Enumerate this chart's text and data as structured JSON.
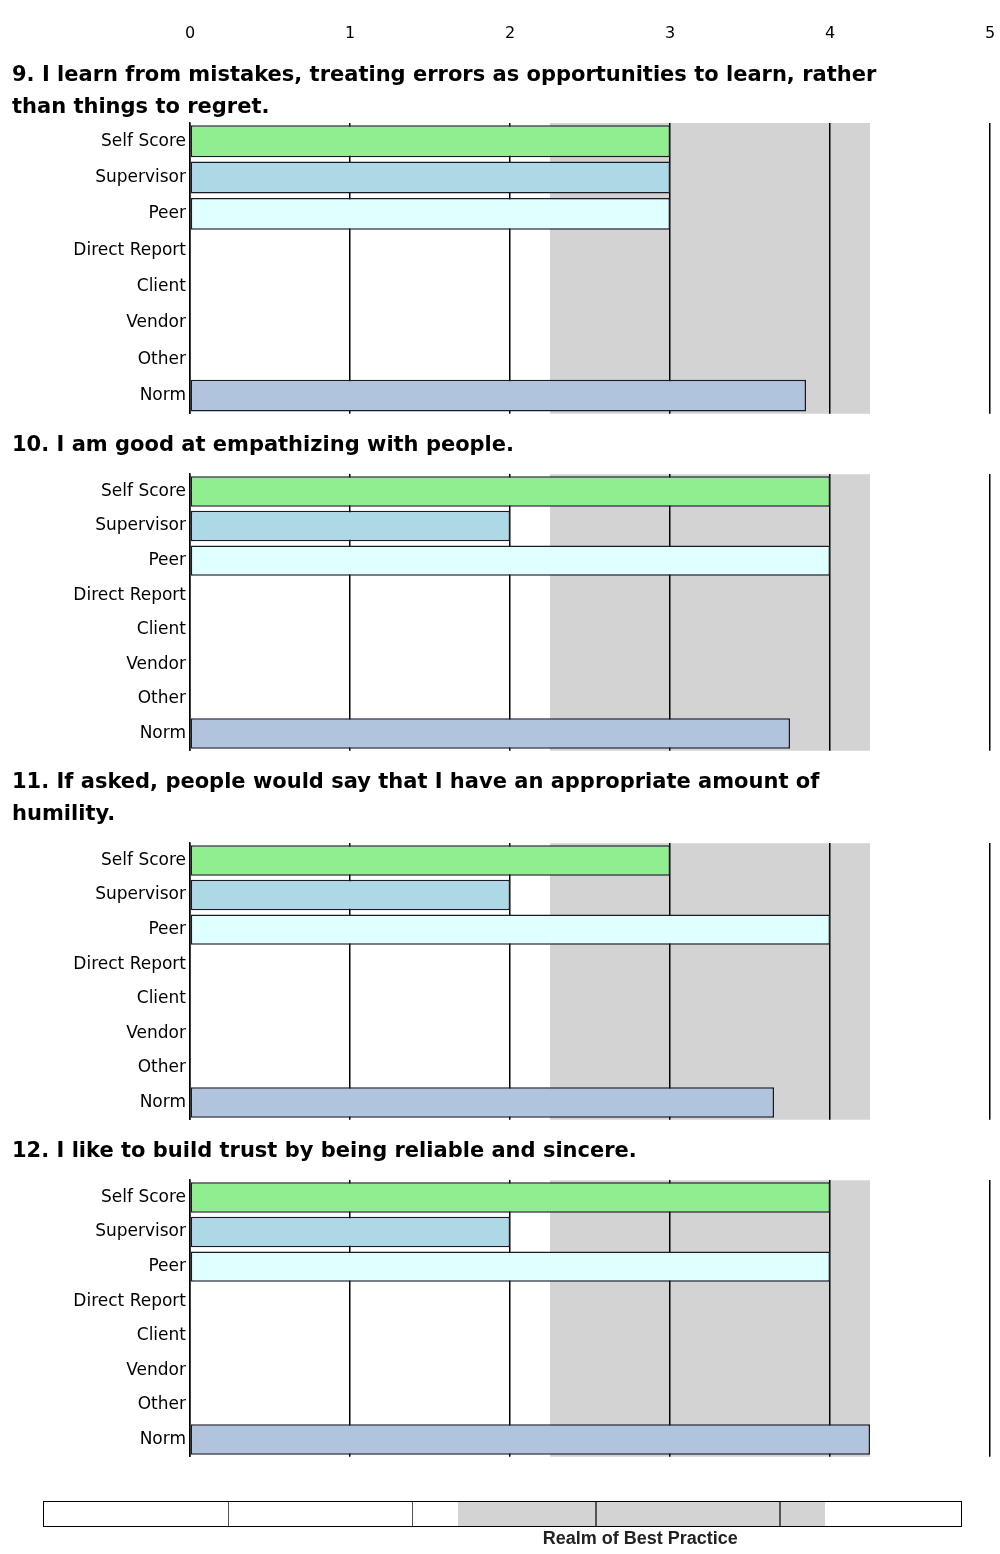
{
  "chart_data": [
    {
      "type": "bar",
      "orientation": "horizontal",
      "title": "9.  I learn from mistakes, treating errors as opportunities to learn, rather than things to regret.",
      "categories": [
        "Self Score",
        "Supervisor",
        "Peer",
        "Direct Report",
        "Client",
        "Vendor",
        "Other",
        "Norm"
      ],
      "values": [
        3,
        3,
        3,
        null,
        null,
        null,
        null,
        3.85
      ],
      "colors": [
        "#90ee90",
        "#add8e6",
        "#e0ffff",
        "#e0ffff",
        "#e0ffff",
        "#e0ffff",
        "#e0ffff",
        "#b0c4de"
      ],
      "xlim": [
        0,
        5
      ],
      "xticks": [
        0,
        1,
        2,
        3,
        4,
        5
      ],
      "grid": "x",
      "legend": false,
      "bands": [
        {
          "axis": "x",
          "from": 2.25,
          "to": 4.25,
          "color": "#d3d3d3"
        }
      ]
    },
    {
      "type": "bar",
      "orientation": "horizontal",
      "title": "10.  I am good at empathizing with people.",
      "categories": [
        "Self Score",
        "Supervisor",
        "Peer",
        "Direct Report",
        "Client",
        "Vendor",
        "Other",
        "Norm"
      ],
      "values": [
        4,
        2,
        4,
        null,
        null,
        null,
        null,
        3.75
      ],
      "colors": [
        "#90ee90",
        "#add8e6",
        "#e0ffff",
        "#e0ffff",
        "#e0ffff",
        "#e0ffff",
        "#e0ffff",
        "#b0c4de"
      ],
      "xlim": [
        0,
        5
      ],
      "xticks": [
        0,
        1,
        2,
        3,
        4,
        5
      ],
      "grid": "x",
      "legend": false,
      "tick_labels": "y",
      "bands": [
        {
          "axis": "x",
          "from": 2.25,
          "to": 4.25,
          "color": "#d3d3d3"
        }
      ]
    },
    {
      "type": "bar",
      "orientation": "horizontal",
      "title": "11.  If asked, people would say that I have an appropriate amount of humility.",
      "categories": [
        "Self Score",
        "Supervisor",
        "Peer",
        "Direct Report",
        "Client",
        "Vendor",
        "Other",
        "Norm"
      ],
      "values": [
        3,
        2,
        4,
        null,
        null,
        null,
        null,
        3.65
      ],
      "colors": [
        "#90ee90",
        "#add8e6",
        "#e0ffff",
        "#e0ffff",
        "#e0ffff",
        "#e0ffff",
        "#e0ffff",
        "#b0c4de"
      ],
      "xlim": [
        0,
        5
      ],
      "xticks": [
        0,
        1,
        2,
        3,
        4,
        5
      ],
      "grid": "x",
      "legend": false,
      "tick_labels": "y",
      "bands": [
        {
          "axis": "x",
          "from": 2.25,
          "to": 4.25,
          "color": "#d3d3d3"
        }
      ]
    },
    {
      "type": "bar",
      "orientation": "horizontal",
      "title": "12.  I like to build trust by being reliable and sincere.",
      "categories": [
        "Self Score",
        "Supervisor",
        "Peer",
        "Direct Report",
        "Client",
        "Vendor",
        "Other",
        "Norm"
      ],
      "values": [
        4,
        2,
        4,
        null,
        null,
        null,
        null,
        4.25
      ],
      "colors": [
        "#90ee90",
        "#add8e6",
        "#e0ffff",
        "#e0ffff",
        "#e0ffff",
        "#e0ffff",
        "#e0ffff",
        "#b0c4de"
      ],
      "xlim": [
        0,
        5
      ],
      "xticks": [
        0,
        1,
        2,
        3,
        4,
        5
      ],
      "grid": "x",
      "legend": false,
      "tick_labels": "y",
      "bands": [
        {
          "axis": "x",
          "from": 2.25,
          "to": 4.25,
          "color": "#d3d3d3"
        }
      ],
      "annotations": [
        "Realm of Best Practice"
      ]
    }
  ]
}
